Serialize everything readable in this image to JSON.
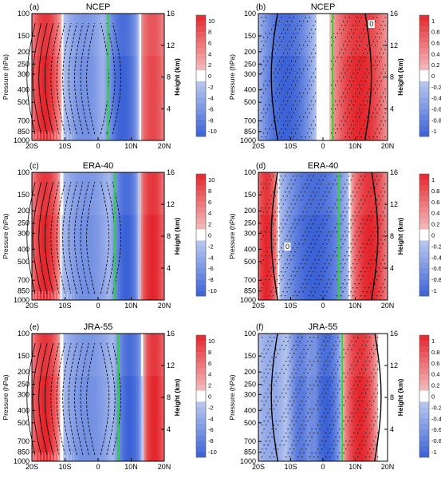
{
  "figure": {
    "ylabel_left": "Pressure (hPa)",
    "ylabel_right": "Height (km)",
    "pressure_ticks": [
      "100",
      "150",
      "200",
      "250",
      "300",
      "400",
      "500",
      "700",
      "850",
      "1000"
    ],
    "height_ticks": [
      "4",
      "8",
      "12",
      "16"
    ],
    "x_ticks": [
      "20S",
      "10S",
      "0",
      "10N",
      "20N"
    ]
  },
  "colors": {
    "neg_strong": "#3b62d6",
    "neg_light": "#c8d4f2",
    "pos_light": "#f4cccc",
    "pos_strong": "#e3262d",
    "itcz_line": "#22dd22"
  },
  "chart_data": [
    {
      "type": "heatmap",
      "panel": "(a)",
      "title": "NCEP",
      "x_range": [
        "20S",
        "20N"
      ],
      "y_range_hPa": [
        1000,
        100
      ],
      "height_km": [
        0,
        16
      ],
      "colorbar_ticks": [
        "10",
        "8",
        "6",
        "4",
        "2",
        "0",
        "-2",
        "-4",
        "-6",
        "-8",
        "-10"
      ],
      "vertical_line_lat": 3,
      "color_regions": [
        {
          "lat": [
            -20,
            -12
          ],
          "sign": "positive",
          "max": 10
        },
        {
          "lat": [
            -10,
            2
          ],
          "sign": "negative",
          "min": -6
        },
        {
          "lat": [
            3,
            12
          ],
          "sign": "negative",
          "min": -10
        },
        {
          "lat": [
            13,
            20
          ],
          "sign": "positive",
          "max": 8
        }
      ]
    },
    {
      "type": "heatmap",
      "panel": "(b)",
      "title": "NCEP",
      "x_range": [
        "20S",
        "20N"
      ],
      "y_range_hPa": [
        1000,
        100
      ],
      "height_km": [
        0,
        16
      ],
      "colorbar_ticks": [
        "1",
        "0.8",
        "0.6",
        "0.4",
        "0.2",
        "0",
        "-0.2",
        "-0.4",
        "-0.6",
        "-0.8",
        "-1"
      ],
      "vertical_line_lat": 3,
      "contour_labels": [
        "0"
      ],
      "stippling": true,
      "color_regions": [
        {
          "lat": [
            -20,
            -3
          ],
          "sign": "negative",
          "min": -1
        },
        {
          "lat": [
            3,
            20
          ],
          "sign": "positive",
          "max": 1
        }
      ]
    },
    {
      "type": "heatmap",
      "panel": "(c)",
      "title": "ERA-40",
      "x_range": [
        "20S",
        "20N"
      ],
      "y_range_hPa": [
        1000,
        100
      ],
      "height_km": [
        0,
        16
      ],
      "colorbar_ticks": [
        "10",
        "8",
        "6",
        "4",
        "2",
        "0",
        "-2",
        "-4",
        "-6",
        "-8",
        "-10"
      ],
      "vertical_line_lat": 5,
      "color_regions": [
        {
          "lat": [
            -20,
            -12
          ],
          "sign": "positive",
          "max": 10
        },
        {
          "lat": [
            -11,
            4
          ],
          "sign": "negative",
          "min": -6
        },
        {
          "lat": [
            5,
            12
          ],
          "sign": "negative",
          "min": -10
        },
        {
          "lat": [
            13,
            20
          ],
          "sign": "positive",
          "max": 10
        }
      ]
    },
    {
      "type": "heatmap",
      "panel": "(d)",
      "title": "ERA-40",
      "x_range": [
        "20S",
        "20N"
      ],
      "y_range_hPa": [
        1000,
        100
      ],
      "height_km": [
        0,
        16
      ],
      "colorbar_ticks": [
        "1",
        "0.8",
        "0.6",
        "0.4",
        "0.2",
        "0",
        "-0.2",
        "-0.4",
        "-0.6",
        "-0.8",
        "-1"
      ],
      "vertical_line_lat": 5,
      "contour_labels": [
        "0"
      ],
      "stippling": true,
      "color_regions": [
        {
          "lat": [
            -20,
            -15
          ],
          "sign": "positive",
          "max": 1
        },
        {
          "lat": [
            -13,
            8
          ],
          "sign": "negative",
          "min": -1
        },
        {
          "lat": [
            9,
            20
          ],
          "sign": "positive",
          "max": 1
        }
      ]
    },
    {
      "type": "heatmap",
      "panel": "(e)",
      "title": "JRA-55",
      "x_range": [
        "20S",
        "20N"
      ],
      "y_range_hPa": [
        1000,
        100
      ],
      "height_km": [
        0,
        16
      ],
      "colorbar_ticks": [
        "10",
        "8",
        "6",
        "4",
        "2",
        "0",
        "-2",
        "-4",
        "-6",
        "-8",
        "-10"
      ],
      "vertical_line_lat": 6,
      "color_regions": [
        {
          "lat": [
            -20,
            -12
          ],
          "sign": "positive",
          "max": 10
        },
        {
          "lat": [
            -11,
            5
          ],
          "sign": "negative",
          "min": -6
        },
        {
          "lat": [
            6,
            13
          ],
          "sign": "negative",
          "min": -10
        },
        {
          "lat": [
            14,
            20
          ],
          "sign": "positive",
          "max": 10
        }
      ]
    },
    {
      "type": "heatmap",
      "panel": "(f)",
      "title": "JRA-55",
      "x_range": [
        "20S",
        "20N"
      ],
      "y_range_hPa": [
        1000,
        100
      ],
      "height_km": [
        0,
        16
      ],
      "colorbar_ticks": [
        "1",
        "0.8",
        "0.6",
        "0.4",
        "0.2",
        "0",
        "-0.2",
        "-0.4",
        "-0.6",
        "-0.8",
        "-1"
      ],
      "vertical_line_lat": 6,
      "stippling": true,
      "color_regions": [
        {
          "lat": [
            -20,
            -12
          ],
          "sign": "negative",
          "min": -0.4
        },
        {
          "lat": [
            -10,
            -4
          ],
          "sign": "negative",
          "min": -0.8
        },
        {
          "lat": [
            -3,
            5
          ],
          "sign": "negative",
          "min": -1
        },
        {
          "lat": [
            7,
            16
          ],
          "sign": "positive",
          "max": 1
        }
      ]
    }
  ]
}
